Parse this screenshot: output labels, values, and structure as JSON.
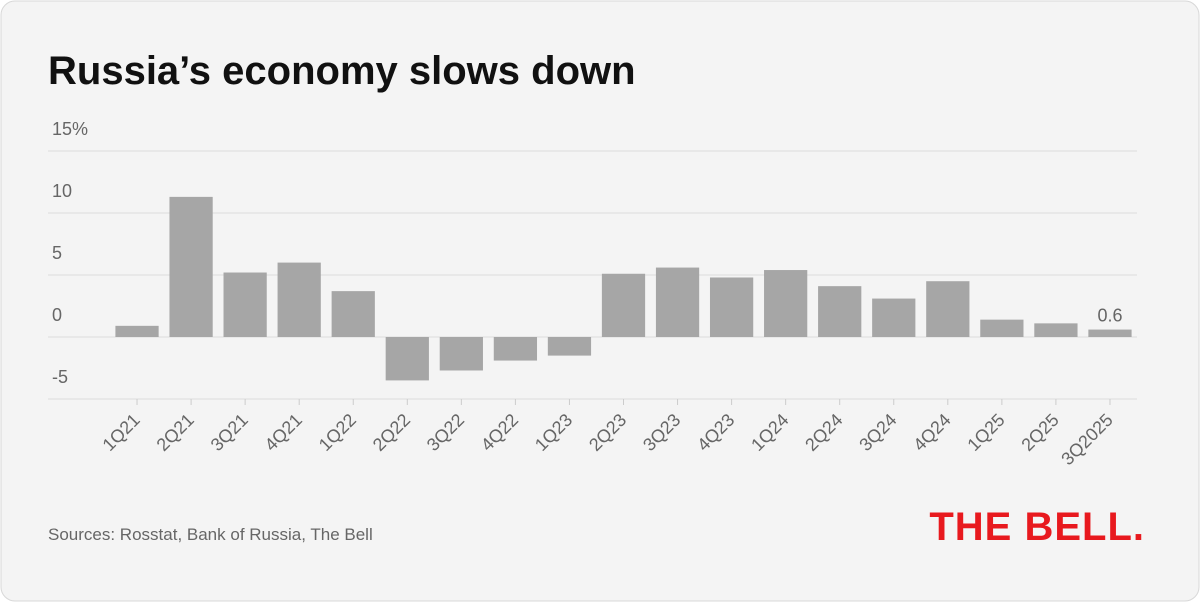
{
  "chart_data": {
    "type": "bar",
    "title": "Russia’s economy slows down",
    "categories": [
      "1Q21",
      "2Q21",
      "3Q21",
      "4Q21",
      "1Q22",
      "2Q22",
      "3Q22",
      "4Q22",
      "1Q23",
      "2Q23",
      "3Q23",
      "4Q23",
      "1Q24",
      "2Q24",
      "3Q24",
      "4Q24",
      "1Q25",
      "2Q25",
      "3Q2025"
    ],
    "values": [
      0.9,
      11.3,
      5.2,
      6.0,
      3.7,
      -3.5,
      -2.7,
      -1.9,
      -1.5,
      5.1,
      5.6,
      4.8,
      5.4,
      4.1,
      3.1,
      4.5,
      1.4,
      1.1,
      0.6
    ],
    "color": "#a6a6a6",
    "data_labels": "last",
    "ylim": [
      -5,
      15
    ],
    "yticks": [
      -5,
      0,
      5,
      10,
      {
        "value": 15,
        "label": "15%"
      }
    ],
    "grid": true,
    "source": "Sources: Rosstat, Bank of Russia, The Bell",
    "brand": "THE BELL."
  }
}
